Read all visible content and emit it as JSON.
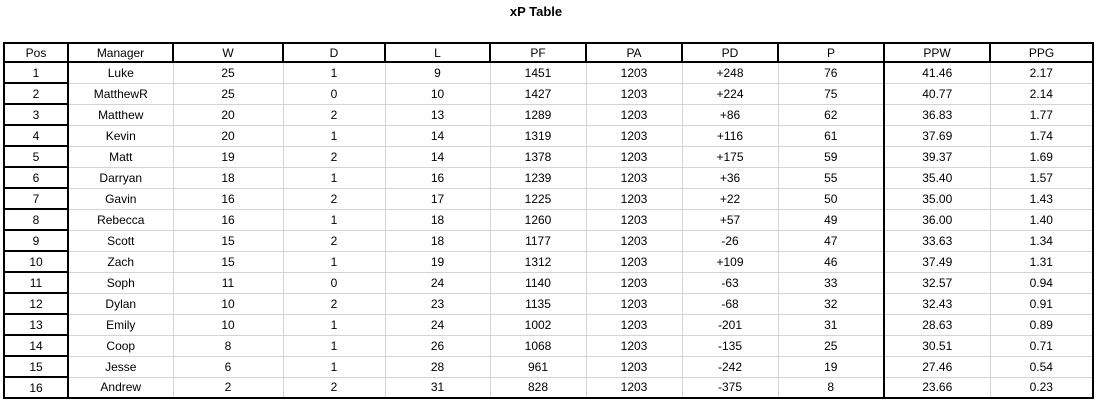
{
  "title": "xP Table",
  "colors": {
    "background": "#ffffff",
    "text": "#000000",
    "thick_border": "#000000",
    "grid_line": "#d4d4d4"
  },
  "chart_data": {
    "type": "table",
    "title": "xP Table",
    "columns": [
      "Pos",
      "Manager",
      "W",
      "D",
      "L",
      "PF",
      "PA",
      "PD",
      "P",
      "PPW",
      "PPG"
    ],
    "column_keys": [
      "pos",
      "manager",
      "w",
      "d",
      "l",
      "pf",
      "pa",
      "pd",
      "p",
      "ppw",
      "ppg"
    ],
    "rows": [
      [
        "1",
        "Luke",
        "25",
        "1",
        "9",
        "1451",
        "1203",
        "+248",
        "76",
        "41.46",
        "2.17"
      ],
      [
        "2",
        "MatthewR",
        "25",
        "0",
        "10",
        "1427",
        "1203",
        "+224",
        "75",
        "40.77",
        "2.14"
      ],
      [
        "3",
        "Matthew",
        "20",
        "2",
        "13",
        "1289",
        "1203",
        "+86",
        "62",
        "36.83",
        "1.77"
      ],
      [
        "4",
        "Kevin",
        "20",
        "1",
        "14",
        "1319",
        "1203",
        "+116",
        "61",
        "37.69",
        "1.74"
      ],
      [
        "5",
        "Matt",
        "19",
        "2",
        "14",
        "1378",
        "1203",
        "+175",
        "59",
        "39.37",
        "1.69"
      ],
      [
        "6",
        "Darryan",
        "18",
        "1",
        "16",
        "1239",
        "1203",
        "+36",
        "55",
        "35.40",
        "1.57"
      ],
      [
        "7",
        "Gavin",
        "16",
        "2",
        "17",
        "1225",
        "1203",
        "+22",
        "50",
        "35.00",
        "1.43"
      ],
      [
        "8",
        "Rebecca",
        "16",
        "1",
        "18",
        "1260",
        "1203",
        "+57",
        "49",
        "36.00",
        "1.40"
      ],
      [
        "9",
        "Scott",
        "15",
        "2",
        "18",
        "1177",
        "1203",
        "-26",
        "47",
        "33.63",
        "1.34"
      ],
      [
        "10",
        "Zach",
        "15",
        "1",
        "19",
        "1312",
        "1203",
        "+109",
        "46",
        "37.49",
        "1.31"
      ],
      [
        "11",
        "Soph",
        "11",
        "0",
        "24",
        "1140",
        "1203",
        "-63",
        "33",
        "32.57",
        "0.94"
      ],
      [
        "12",
        "Dylan",
        "10",
        "2",
        "23",
        "1135",
        "1203",
        "-68",
        "32",
        "32.43",
        "0.91"
      ],
      [
        "13",
        "Emily",
        "10",
        "1",
        "24",
        "1002",
        "1203",
        "-201",
        "31",
        "28.63",
        "0.89"
      ],
      [
        "14",
        "Coop",
        "8",
        "1",
        "26",
        "1068",
        "1203",
        "-135",
        "25",
        "30.51",
        "0.71"
      ],
      [
        "15",
        "Jesse",
        "6",
        "1",
        "28",
        "961",
        "1203",
        "-242",
        "19",
        "27.46",
        "0.54"
      ],
      [
        "16",
        "Andrew",
        "2",
        "2",
        "31",
        "828",
        "1203",
        "-375",
        "8",
        "23.66",
        "0.23"
      ]
    ]
  }
}
